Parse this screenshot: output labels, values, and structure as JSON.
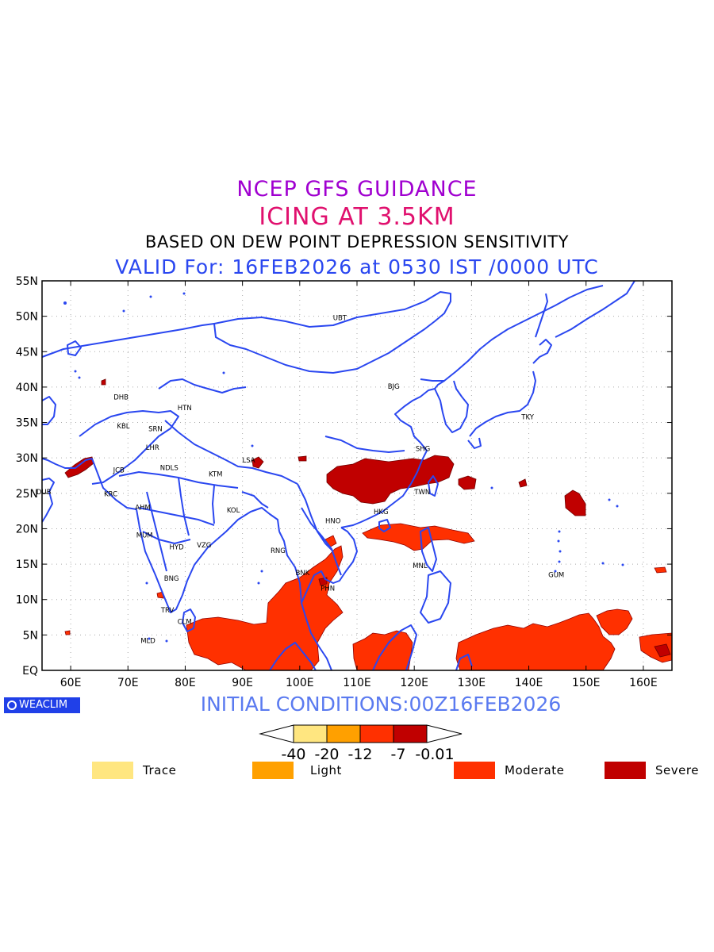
{
  "titles": {
    "line1": "NCEP GFS GUIDANCE",
    "line2": "ICING AT 3.5KM",
    "line3": "BASED ON DEW POINT DEPRESSION SENSITIVITY",
    "line4": "VALID For: 16FEB2026 at 0530 IST /0000 UTC"
  },
  "map": {
    "lat_labels": [
      "55N",
      "50N",
      "45N",
      "40N",
      "35N",
      "30N",
      "25N",
      "20N",
      "15N",
      "10N",
      "5N",
      "EQ"
    ],
    "lon_labels": [
      "60E",
      "70E",
      "80E",
      "90E",
      "100E",
      "110E",
      "120E",
      "130E",
      "140E",
      "150E",
      "160E"
    ],
    "cities": [
      {
        "label": "UBT",
        "lon": 107.0,
        "lat": 49.8
      },
      {
        "label": "BJG",
        "lon": 116.4,
        "lat": 40.1
      },
      {
        "label": "TKY",
        "lon": 139.8,
        "lat": 35.8
      },
      {
        "label": "SHG",
        "lon": 121.5,
        "lat": 31.3
      },
      {
        "label": "TWN",
        "lon": 121.4,
        "lat": 25.2
      },
      {
        "label": "HKG",
        "lon": 114.2,
        "lat": 22.4
      },
      {
        "label": "HNO",
        "lon": 105.8,
        "lat": 21.1
      },
      {
        "label": "MNL",
        "lon": 121.0,
        "lat": 14.8
      },
      {
        "label": "BNK",
        "lon": 100.5,
        "lat": 13.8
      },
      {
        "label": "PHN",
        "lon": 104.9,
        "lat": 11.6
      },
      {
        "label": "RNG",
        "lon": 96.2,
        "lat": 16.9
      },
      {
        "label": "GUM",
        "lon": 144.8,
        "lat": 13.5
      },
      {
        "label": "LSA",
        "lon": 91.1,
        "lat": 29.7
      },
      {
        "label": "KTM",
        "lon": 85.3,
        "lat": 27.7
      },
      {
        "label": "NDLS",
        "lon": 77.2,
        "lat": 28.6
      },
      {
        "label": "LHR",
        "lon": 74.3,
        "lat": 31.5
      },
      {
        "label": "SRN",
        "lon": 74.8,
        "lat": 34.1
      },
      {
        "label": "KBL",
        "lon": 69.2,
        "lat": 34.5
      },
      {
        "label": "DHB",
        "lon": 68.8,
        "lat": 38.6
      },
      {
        "label": "HTN",
        "lon": 79.9,
        "lat": 37.1
      },
      {
        "label": "JCB",
        "lon": 68.4,
        "lat": 28.3
      },
      {
        "label": "KRC",
        "lon": 67.0,
        "lat": 24.9
      },
      {
        "label": "DUB",
        "lon": 55.3,
        "lat": 25.2
      },
      {
        "label": "AHM",
        "lon": 72.6,
        "lat": 23.0
      },
      {
        "label": "MUM",
        "lon": 72.9,
        "lat": 19.1
      },
      {
        "label": "HYD",
        "lon": 78.5,
        "lat": 17.4
      },
      {
        "label": "VZG",
        "lon": 83.3,
        "lat": 17.7
      },
      {
        "label": "KOL",
        "lon": 88.4,
        "lat": 22.6
      },
      {
        "label": "BNG",
        "lon": 77.6,
        "lat": 13.0
      },
      {
        "label": "TRV",
        "lon": 76.9,
        "lat": 8.5
      },
      {
        "label": "CLM",
        "lon": 79.9,
        "lat": 6.9
      },
      {
        "label": "MLD",
        "lon": 73.5,
        "lat": 4.2
      }
    ]
  },
  "colors": {
    "trace": "#ffe680",
    "light": "#ffa000",
    "moderate": "#ff3000",
    "severe": "#c00000",
    "coast": "#2a47f0"
  },
  "footer": {
    "brand": "WEACLIM",
    "initial_conditions": "INITIAL CONDITIONS:00Z16FEB2026"
  },
  "colorbar": {
    "labels": [
      "-40",
      "-20",
      "-12",
      "-7",
      "-0.01"
    ]
  },
  "legend": [
    {
      "label": "Trace",
      "color_key": "trace"
    },
    {
      "label": "Light",
      "color_key": "light"
    },
    {
      "label": "Moderate",
      "color_key": "moderate"
    },
    {
      "label": "Severe",
      "color_key": "severe"
    }
  ]
}
